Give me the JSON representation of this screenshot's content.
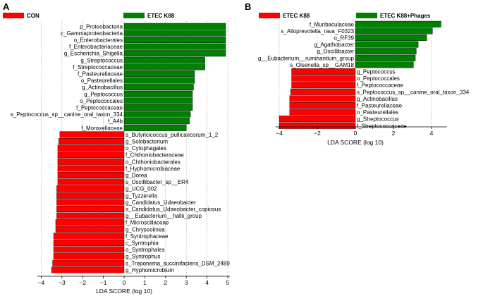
{
  "chart_data": [
    {
      "panel": "A",
      "type": "bar",
      "orientation": "horizontal",
      "legend": [
        {
          "label": "CON",
          "color": "#ff0000"
        },
        {
          "label": "ETEC K88",
          "color": "#008000"
        }
      ],
      "xlabel": "LDA SCORE (log 10)",
      "xlim": [
        -4.2,
        5.1
      ],
      "xticks": [
        -4,
        -3,
        -2,
        -1,
        0,
        1,
        2,
        3,
        4,
        5
      ],
      "grid": true,
      "bars": [
        {
          "label": "p_Proteobacteria",
          "value": 4.9,
          "group": "ETEC K88"
        },
        {
          "label": "c_Gammaproteobacteria",
          "value": 4.9,
          "group": "ETEC K88"
        },
        {
          "label": "o_Enterobacterales",
          "value": 4.9,
          "group": "ETEC K88"
        },
        {
          "label": "f_Enterobacteriaceae",
          "value": 4.9,
          "group": "ETEC K88"
        },
        {
          "label": "g_Escherichia_Shigella",
          "value": 4.9,
          "group": "ETEC K88"
        },
        {
          "label": "g_Streptococcus",
          "value": 3.9,
          "group": "ETEC K88"
        },
        {
          "label": "f_Streptococcaceae",
          "value": 3.9,
          "group": "ETEC K88"
        },
        {
          "label": "f_Pasteurellaceae",
          "value": 3.4,
          "group": "ETEC K88"
        },
        {
          "label": "o_Pasteurellales",
          "value": 3.4,
          "group": "ETEC K88"
        },
        {
          "label": "g_Actinobacillus",
          "value": 3.35,
          "group": "ETEC K88"
        },
        {
          "label": "g_Peptococcus",
          "value": 3.3,
          "group": "ETEC K88"
        },
        {
          "label": "o_Peptococcales",
          "value": 3.3,
          "group": "ETEC K88"
        },
        {
          "label": "f_Peptococcaceae",
          "value": 3.3,
          "group": "ETEC K88"
        },
        {
          "label": "s_Peptococcus_sp__canine_oral_taxon_334",
          "value": 3.2,
          "group": "ETEC K88"
        },
        {
          "label": "f_A4b",
          "value": 3.15,
          "group": "ETEC K88"
        },
        {
          "label": "f_Moraxellaceae",
          "value": 3.0,
          "group": "ETEC K88"
        },
        {
          "label": "s_Butyricicoccus_pullicaecorum_1_2",
          "value": -3.1,
          "group": "CON"
        },
        {
          "label": "g_Solobacterium",
          "value": -3.15,
          "group": "CON"
        },
        {
          "label": "o_Cytophagales",
          "value": -3.2,
          "group": "CON"
        },
        {
          "label": "f_Chthoniobacteraceae",
          "value": -3.2,
          "group": "CON"
        },
        {
          "label": "o_Chthoniobacterales",
          "value": -3.2,
          "group": "CON"
        },
        {
          "label": "f_Hyphomicrobiaceae",
          "value": -3.2,
          "group": "CON"
        },
        {
          "label": "g_Dorea",
          "value": -3.2,
          "group": "CON"
        },
        {
          "label": "s_Oscillibacter_sp__ER4",
          "value": -3.2,
          "group": "CON"
        },
        {
          "label": "g_UCG_002",
          "value": -3.25,
          "group": "CON"
        },
        {
          "label": "g_Tyzzerella",
          "value": -3.25,
          "group": "CON"
        },
        {
          "label": "g_Candidatus_Udaeobacter",
          "value": -3.25,
          "group": "CON"
        },
        {
          "label": "s_Candidatus_Udaeobacter_copiosus",
          "value": -3.25,
          "group": "CON"
        },
        {
          "label": "g__Eubacterium__hallii_group",
          "value": -3.25,
          "group": "CON"
        },
        {
          "label": "f_Microscillaceae",
          "value": -3.3,
          "group": "CON"
        },
        {
          "label": "g_Chryseolinea",
          "value": -3.3,
          "group": "CON"
        },
        {
          "label": "f_Syntrophaceae",
          "value": -3.4,
          "group": "CON"
        },
        {
          "label": "c_Syntrophia",
          "value": -3.4,
          "group": "CON"
        },
        {
          "label": "o_Syntrophales",
          "value": -3.4,
          "group": "CON"
        },
        {
          "label": "g_Syntrophus",
          "value": -3.4,
          "group": "CON"
        },
        {
          "label": "s_Treponema_succinifaciens_DSM_2489",
          "value": -3.45,
          "group": "CON"
        },
        {
          "label": "g_Hyphomicrobium",
          "value": -3.5,
          "group": "CON"
        }
      ]
    },
    {
      "panel": "B",
      "type": "bar",
      "orientation": "horizontal",
      "legend": [
        {
          "label": "ETEC K88",
          "color": "#ff0000"
        },
        {
          "label": "ETEC K88+Phages",
          "color": "#008000"
        }
      ],
      "xlabel": "LDA SCORE (log 10)",
      "xlim": [
        -4.2,
        4.8
      ],
      "xticks": [
        -4,
        -2,
        0,
        2,
        4
      ],
      "grid": true,
      "bars": [
        {
          "label": "f_Muribaculaceae",
          "value": 4.5,
          "group": "ETEC K88+Phages"
        },
        {
          "label": "s_Alloprevotella_rava_F0323",
          "value": 4.05,
          "group": "ETEC K88+Phages"
        },
        {
          "label": "o_RF39",
          "value": 3.75,
          "group": "ETEC K88+Phages"
        },
        {
          "label": "g_Agathobacter",
          "value": 3.3,
          "group": "ETEC K88+Phages"
        },
        {
          "label": "g_Oscillibacter",
          "value": 3.2,
          "group": "ETEC K88+Phages"
        },
        {
          "label": "g__Eubacterium__ruminantium_group",
          "value": 3.15,
          "group": "ETEC K88+Phages"
        },
        {
          "label": "s_Olsenella_sp__GAM18",
          "value": 3.05,
          "group": "ETEC K88+Phages"
        },
        {
          "label": "g_Peptococcus",
          "value": -3.35,
          "group": "ETEC K88"
        },
        {
          "label": "o_Peptococcales",
          "value": -3.35,
          "group": "ETEC K88"
        },
        {
          "label": "f_Peptococcaceae",
          "value": -3.35,
          "group": "ETEC K88"
        },
        {
          "label": "s_Peptococcus_sp__canine_oral_taxon_334",
          "value": -3.4,
          "group": "ETEC K88"
        },
        {
          "label": "g_Actinobacillus",
          "value": -3.45,
          "group": "ETEC K88"
        },
        {
          "label": "f_Pasteurellaceae",
          "value": -3.45,
          "group": "ETEC K88"
        },
        {
          "label": "o_Pasteurellales",
          "value": -3.45,
          "group": "ETEC K88"
        },
        {
          "label": "g_Streptococcus",
          "value": -4.0,
          "group": "ETEC K88"
        },
        {
          "label": "f_Streptococcaceae",
          "value": -4.0,
          "group": "ETEC K88"
        }
      ]
    }
  ]
}
